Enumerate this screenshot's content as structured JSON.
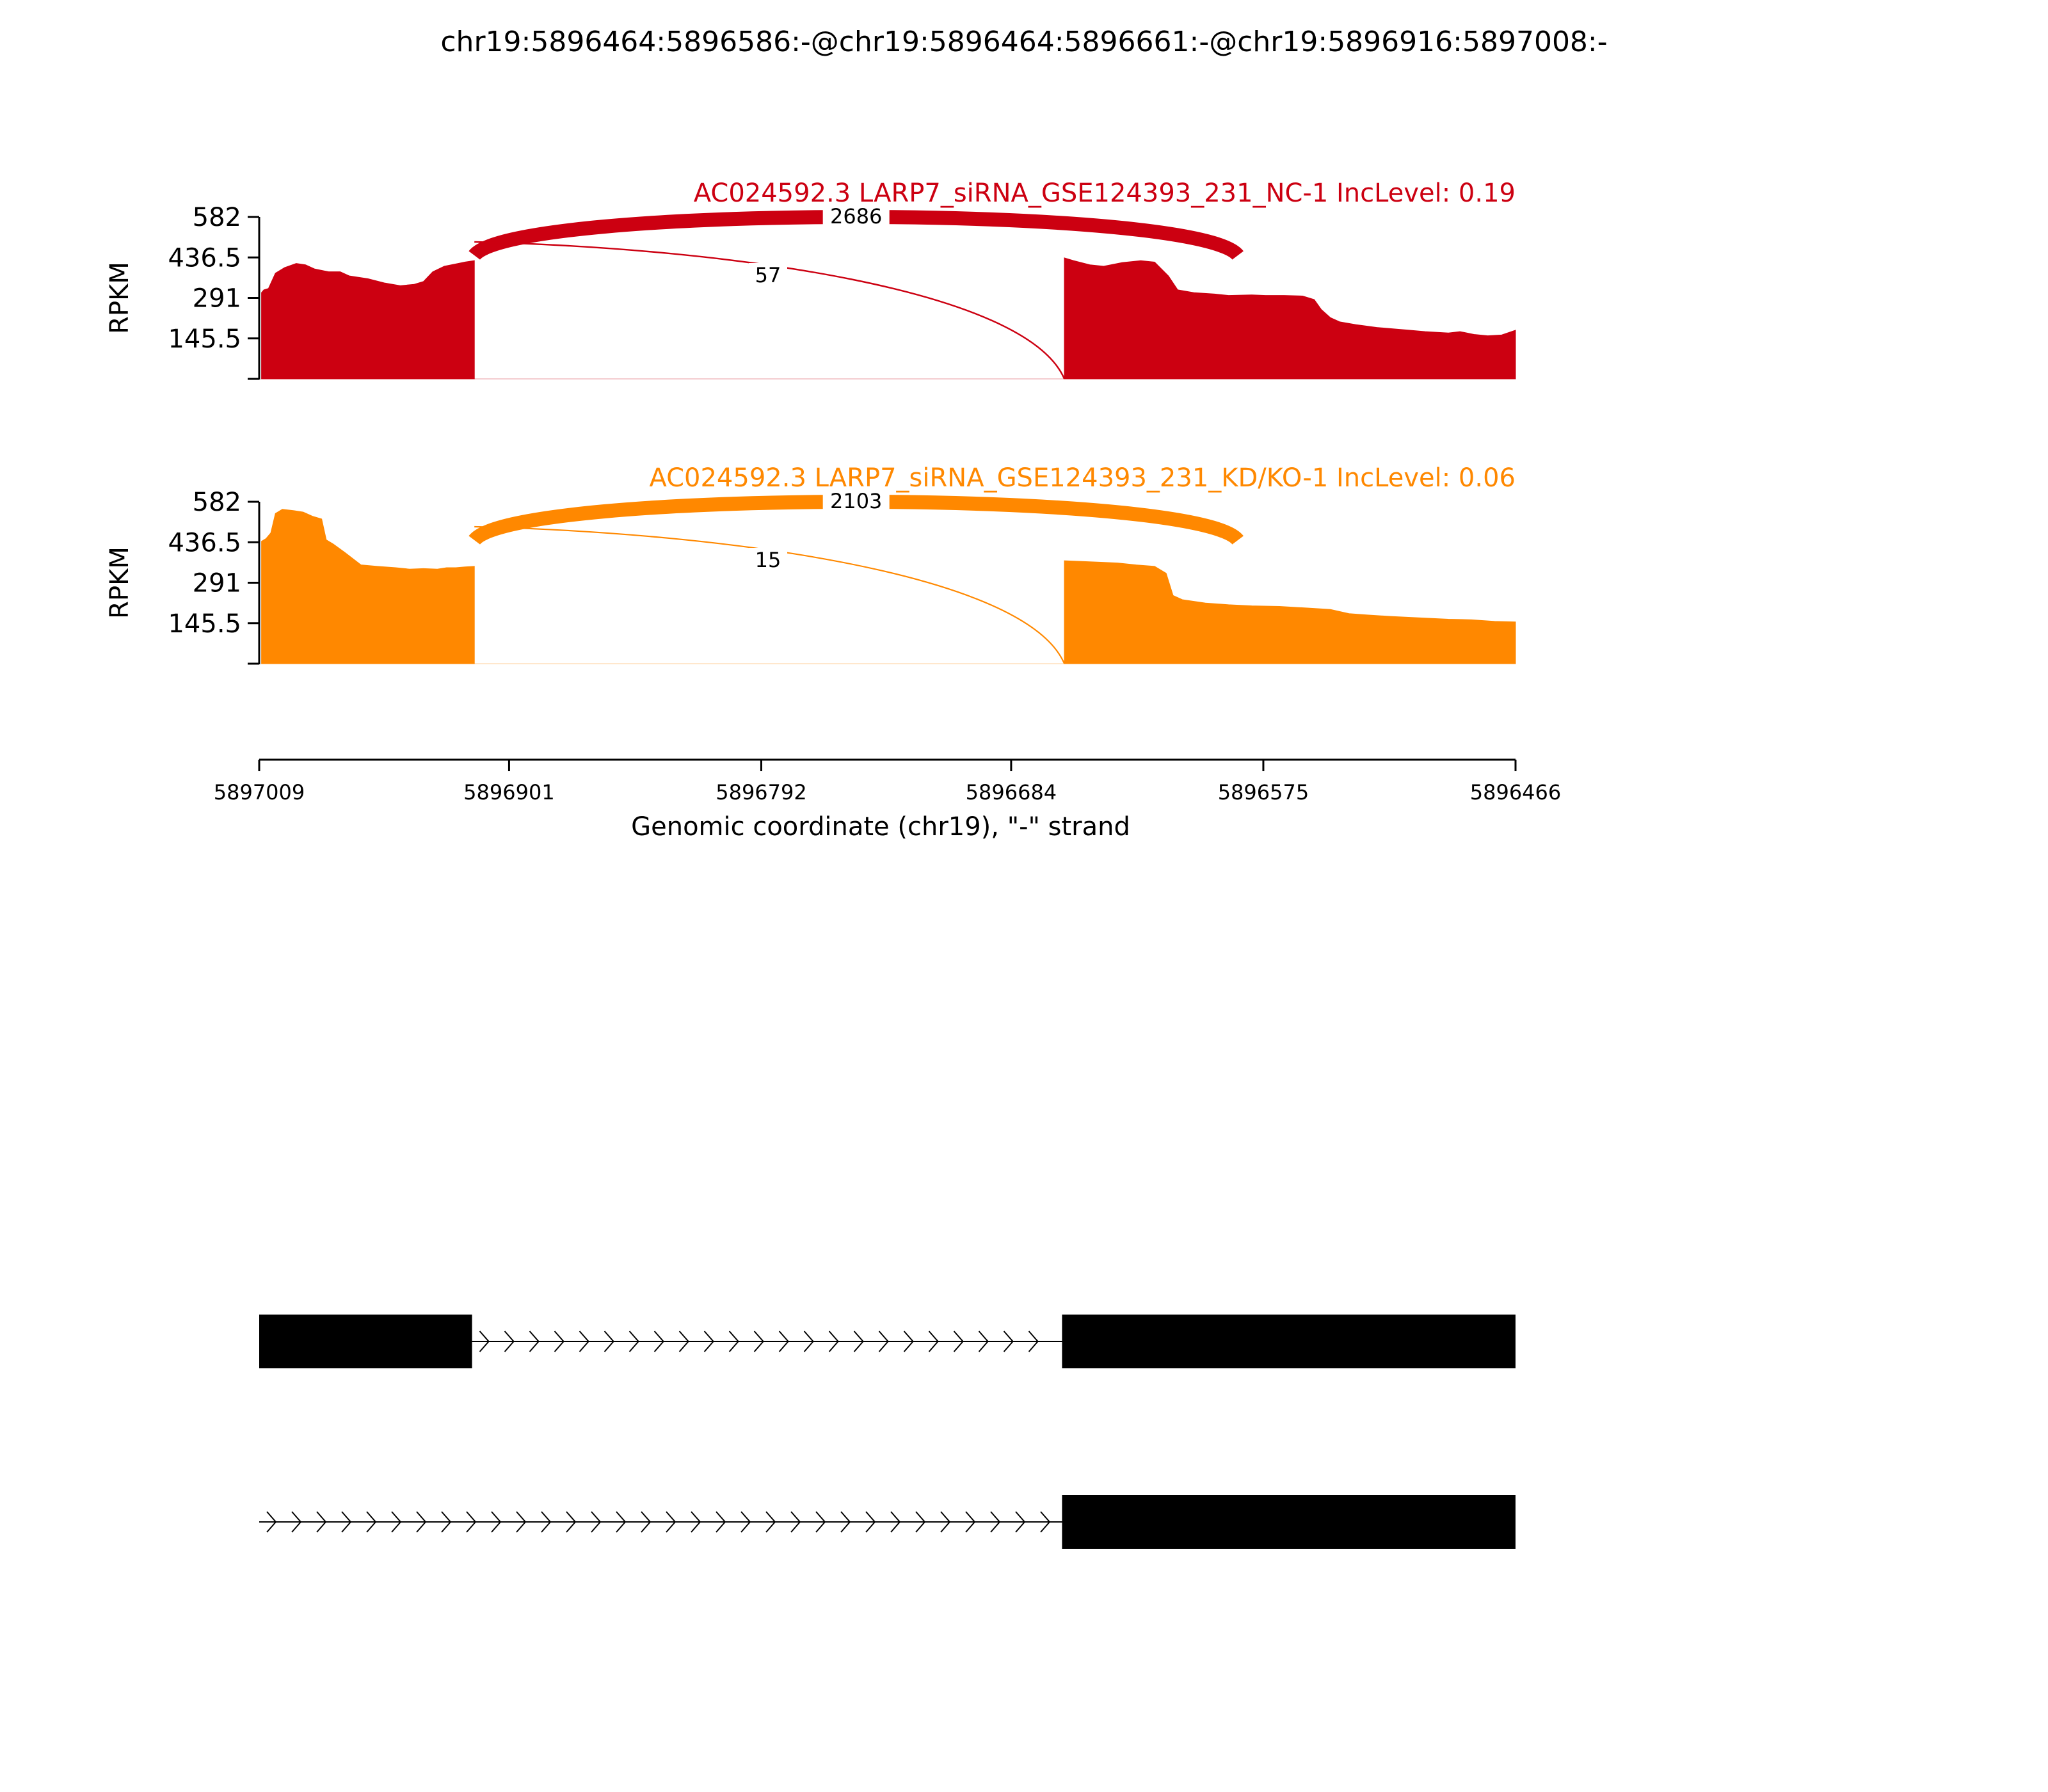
{
  "title": "chr19:5896464:5896586:-@chr19:5896464:5896661:-@chr19:5896916:5897008:-",
  "colors": {
    "nc": "#cc0011",
    "kd": "#ff8800",
    "axis": "#000000",
    "gene": "#000000"
  },
  "chart_data": {
    "type": "area",
    "description_type": "sashimi",
    "xlabel": "Genomic coordinate (chr19), \"-\" strand",
    "xlim": [
      5897009,
      5896466
    ],
    "xticks": [
      5897009,
      5896901,
      5896792,
      5896684,
      5896575,
      5896466
    ],
    "xtick_labels": [
      "5897009",
      "5896901",
      "5896792",
      "5896684",
      "5896575",
      "5896466"
    ],
    "ylabel": "RPKM",
    "ylim": [
      0,
      582
    ],
    "yticks": [
      145.5,
      291,
      436.5,
      582
    ],
    "ytick_labels": [
      "145.5",
      "291",
      "436.5",
      "582"
    ],
    "exon_regions": [
      [
        5897008,
        5896916
      ],
      [
        5896661,
        5896466
      ]
    ],
    "tracks": [
      {
        "label": "AC024592.3 LARP7_siRNA_GSE124393_231_NC-1 IncLevel: 0.19",
        "color_key": "nc",
        "profile": [
          [
            5897008,
            310
          ],
          [
            5897007,
            320
          ],
          [
            5897005,
            325
          ],
          [
            5897002,
            380
          ],
          [
            5896998,
            400
          ],
          [
            5896993,
            415
          ],
          [
            5896989,
            410
          ],
          [
            5896985,
            395
          ],
          [
            5896979,
            385
          ],
          [
            5896974,
            385
          ],
          [
            5896970,
            370
          ],
          [
            5896962,
            360
          ],
          [
            5896955,
            345
          ],
          [
            5896948,
            335
          ],
          [
            5896942,
            340
          ],
          [
            5896938,
            350
          ],
          [
            5896934,
            385
          ],
          [
            5896929,
            405
          ],
          [
            5896923,
            415
          ],
          [
            5896920,
            420
          ],
          [
            5896916,
            425
          ],
          [
            5896661,
            435
          ],
          [
            5896657,
            425
          ],
          [
            5896650,
            410
          ],
          [
            5896644,
            405
          ],
          [
            5896636,
            418
          ],
          [
            5896628,
            425
          ],
          [
            5896622,
            420
          ],
          [
            5896616,
            370
          ],
          [
            5896612,
            320
          ],
          [
            5896605,
            310
          ],
          [
            5896596,
            305
          ],
          [
            5896590,
            300
          ],
          [
            5896580,
            302
          ],
          [
            5896574,
            300
          ],
          [
            5896566,
            300
          ],
          [
            5896558,
            298
          ],
          [
            5896553,
            285
          ],
          [
            5896550,
            250
          ],
          [
            5896546,
            220
          ],
          [
            5896542,
            205
          ],
          [
            5896535,
            195
          ],
          [
            5896526,
            185
          ],
          [
            5896519,
            180
          ],
          [
            5896512,
            175
          ],
          [
            5896505,
            170
          ],
          [
            5896495,
            165
          ],
          [
            5896490,
            170
          ],
          [
            5896484,
            160
          ],
          [
            5896478,
            155
          ],
          [
            5896472,
            158
          ],
          [
            5896466,
            175
          ]
        ],
        "junctions": [
          {
            "donor": 5896916,
            "acceptor": 5896586,
            "count": 2686
          },
          {
            "donor": 5896916,
            "acceptor": 5896661,
            "count": 57
          }
        ]
      },
      {
        "label": "AC024592.3 LARP7_siRNA_GSE124393_231_KD/KO-1 IncLevel: 0.06",
        "color_key": "kd",
        "profile": [
          [
            5897008,
            440
          ],
          [
            5897006,
            450
          ],
          [
            5897004,
            470
          ],
          [
            5897002,
            540
          ],
          [
            5896999,
            555
          ],
          [
            5896994,
            550
          ],
          [
            5896990,
            545
          ],
          [
            5896986,
            530
          ],
          [
            5896982,
            520
          ],
          [
            5896980,
            445
          ],
          [
            5896977,
            430
          ],
          [
            5896972,
            400
          ],
          [
            5896965,
            355
          ],
          [
            5896958,
            350
          ],
          [
            5896950,
            345
          ],
          [
            5896944,
            340
          ],
          [
            5896938,
            342
          ],
          [
            5896932,
            340
          ],
          [
            5896928,
            345
          ],
          [
            5896924,
            345
          ],
          [
            5896920,
            348
          ],
          [
            5896916,
            350
          ],
          [
            5896661,
            370
          ],
          [
            5896655,
            368
          ],
          [
            5896646,
            365
          ],
          [
            5896638,
            362
          ],
          [
            5896630,
            355
          ],
          [
            5896622,
            350
          ],
          [
            5896617,
            325
          ],
          [
            5896614,
            245
          ],
          [
            5896610,
            230
          ],
          [
            5896600,
            218
          ],
          [
            5896590,
            212
          ],
          [
            5896580,
            208
          ],
          [
            5896568,
            206
          ],
          [
            5896556,
            200
          ],
          [
            5896546,
            195
          ],
          [
            5896538,
            180
          ],
          [
            5896530,
            175
          ],
          [
            5896520,
            170
          ],
          [
            5896508,
            165
          ],
          [
            5896495,
            160
          ],
          [
            5896485,
            158
          ],
          [
            5896475,
            152
          ],
          [
            5896466,
            150
          ]
        ],
        "junctions": [
          {
            "donor": 5896916,
            "acceptor": 5896586,
            "count": 2103
          },
          {
            "donor": 5896916,
            "acceptor": 5896661,
            "count": 15
          }
        ]
      }
    ],
    "transcripts": [
      {
        "exons": [
          [
            5897009,
            5896917
          ],
          [
            5896662,
            5896466
          ]
        ],
        "intron": [
          5896917,
          5896662
        ]
      },
      {
        "exons": [
          [
            5896662,
            5896466
          ]
        ],
        "intron": [
          5897009,
          5896662
        ]
      }
    ]
  }
}
